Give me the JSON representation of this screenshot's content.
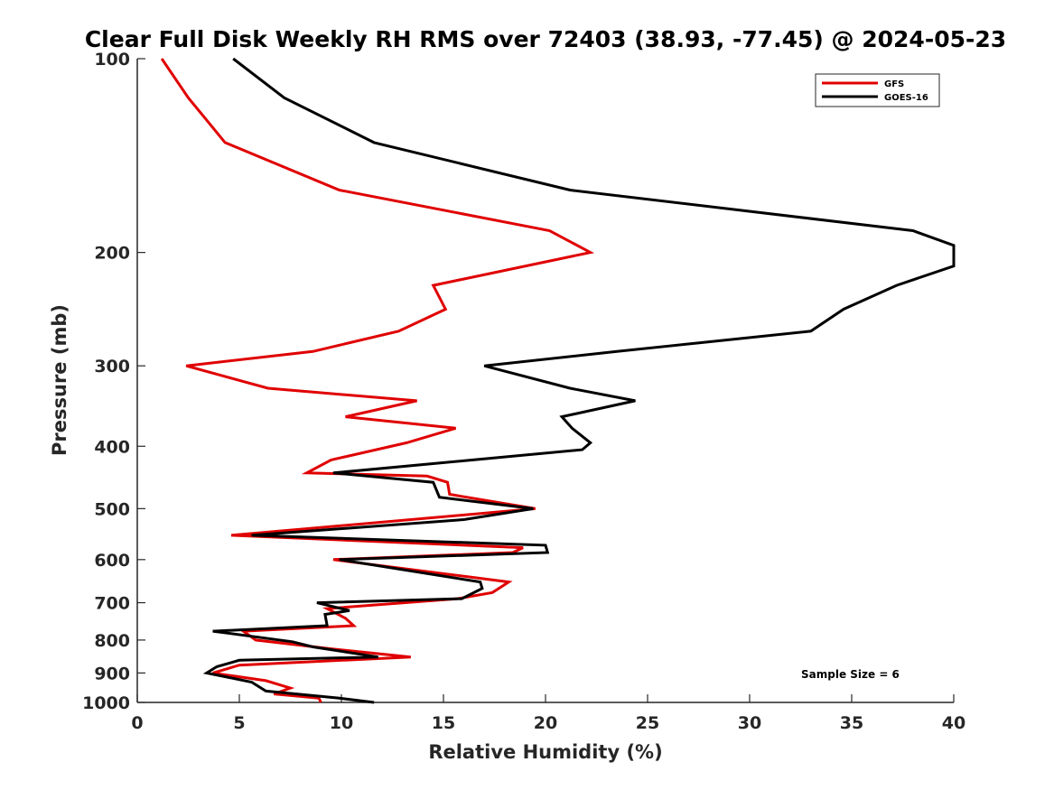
{
  "chart_data": {
    "type": "line",
    "title": "Clear Full Disk Weekly RH RMS over 72403 (38.93, -77.45) @ 2024-05-23",
    "xlabel": "Relative Humidity (%)",
    "ylabel": "Pressure (mb)",
    "xlim": [
      0,
      40
    ],
    "ylim": [
      100,
      1000
    ],
    "y_scale": "log",
    "y_reversed": true,
    "x_ticks": [
      0,
      5,
      10,
      15,
      20,
      25,
      30,
      35,
      40
    ],
    "y_ticks": [
      100,
      200,
      300,
      400,
      500,
      600,
      700,
      800,
      900,
      1000
    ],
    "grid": false,
    "legend_position": "top-right",
    "annotation": "Sample Size = 6",
    "series": [
      {
        "name": "GFS",
        "color": "#e00000",
        "points": [
          {
            "rh": 1.2,
            "p": 100
          },
          {
            "rh": 2.5,
            "p": 115
          },
          {
            "rh": 4.3,
            "p": 135
          },
          {
            "rh": 9.9,
            "p": 160
          },
          {
            "rh": 20.2,
            "p": 185
          },
          {
            "rh": 22.2,
            "p": 200
          },
          {
            "rh": 14.5,
            "p": 225
          },
          {
            "rh": 15.1,
            "p": 245
          },
          {
            "rh": 12.8,
            "p": 265
          },
          {
            "rh": 8.6,
            "p": 285
          },
          {
            "rh": 2.4,
            "p": 300
          },
          {
            "rh": 6.4,
            "p": 325
          },
          {
            "rh": 13.7,
            "p": 340
          },
          {
            "rh": 10.2,
            "p": 360
          },
          {
            "rh": 15.6,
            "p": 375
          },
          {
            "rh": 13.2,
            "p": 395
          },
          {
            "rh": 9.5,
            "p": 420
          },
          {
            "rh": 8.3,
            "p": 440
          },
          {
            "rh": 14.2,
            "p": 445
          },
          {
            "rh": 15.2,
            "p": 455
          },
          {
            "rh": 15.3,
            "p": 475
          },
          {
            "rh": 19.5,
            "p": 500
          },
          {
            "rh": 4.6,
            "p": 550
          },
          {
            "rh": 18.9,
            "p": 575
          },
          {
            "rh": 18.4,
            "p": 585
          },
          {
            "rh": 9.6,
            "p": 600
          },
          {
            "rh": 18.2,
            "p": 650
          },
          {
            "rh": 17.4,
            "p": 675
          },
          {
            "rh": 15.7,
            "p": 690
          },
          {
            "rh": 9.3,
            "p": 715
          },
          {
            "rh": 10.2,
            "p": 740
          },
          {
            "rh": 10.6,
            "p": 760
          },
          {
            "rh": 5.2,
            "p": 775
          },
          {
            "rh": 5.8,
            "p": 800
          },
          {
            "rh": 9.4,
            "p": 825
          },
          {
            "rh": 13.4,
            "p": 850
          },
          {
            "rh": 5.0,
            "p": 875
          },
          {
            "rh": 3.7,
            "p": 900
          },
          {
            "rh": 6.3,
            "p": 925
          },
          {
            "rh": 7.5,
            "p": 950
          },
          {
            "rh": 6.7,
            "p": 970
          },
          {
            "rh": 8.9,
            "p": 985
          },
          {
            "rh": 9.0,
            "p": 1000
          }
        ]
      },
      {
        "name": "GOES-16",
        "color": "#000000",
        "points": [
          {
            "rh": 4.7,
            "p": 100
          },
          {
            "rh": 7.2,
            "p": 115
          },
          {
            "rh": 11.6,
            "p": 135
          },
          {
            "rh": 21.2,
            "p": 160
          },
          {
            "rh": 38.0,
            "p": 185
          },
          {
            "rh": 40.0,
            "p": 195
          },
          {
            "rh": 40.0,
            "p": 210
          },
          {
            "rh": 37.2,
            "p": 225
          },
          {
            "rh": 34.6,
            "p": 245
          },
          {
            "rh": 33.0,
            "p": 265
          },
          {
            "rh": 23.5,
            "p": 285
          },
          {
            "rh": 17.0,
            "p": 300
          },
          {
            "rh": 21.2,
            "p": 325
          },
          {
            "rh": 24.4,
            "p": 340
          },
          {
            "rh": 20.8,
            "p": 360
          },
          {
            "rh": 21.3,
            "p": 375
          },
          {
            "rh": 22.2,
            "p": 395
          },
          {
            "rh": 21.8,
            "p": 405
          },
          {
            "rh": 9.6,
            "p": 440
          },
          {
            "rh": 14.5,
            "p": 455
          },
          {
            "rh": 14.8,
            "p": 480
          },
          {
            "rh": 19.4,
            "p": 500
          },
          {
            "rh": 16.0,
            "p": 520
          },
          {
            "rh": 5.6,
            "p": 550
          },
          {
            "rh": 20.0,
            "p": 570
          },
          {
            "rh": 20.1,
            "p": 585
          },
          {
            "rh": 9.9,
            "p": 600
          },
          {
            "rh": 16.8,
            "p": 650
          },
          {
            "rh": 16.9,
            "p": 665
          },
          {
            "rh": 15.9,
            "p": 690
          },
          {
            "rh": 8.8,
            "p": 700
          },
          {
            "rh": 10.4,
            "p": 720
          },
          {
            "rh": 9.2,
            "p": 730
          },
          {
            "rh": 9.3,
            "p": 760
          },
          {
            "rh": 3.7,
            "p": 775
          },
          {
            "rh": 7.6,
            "p": 805
          },
          {
            "rh": 8.6,
            "p": 820
          },
          {
            "rh": 11.8,
            "p": 850
          },
          {
            "rh": 5.0,
            "p": 860
          },
          {
            "rh": 3.9,
            "p": 880
          },
          {
            "rh": 3.4,
            "p": 900
          },
          {
            "rh": 5.6,
            "p": 930
          },
          {
            "rh": 6.3,
            "p": 960
          },
          {
            "rh": 9.9,
            "p": 985
          },
          {
            "rh": 11.6,
            "p": 1000
          }
        ]
      }
    ]
  }
}
